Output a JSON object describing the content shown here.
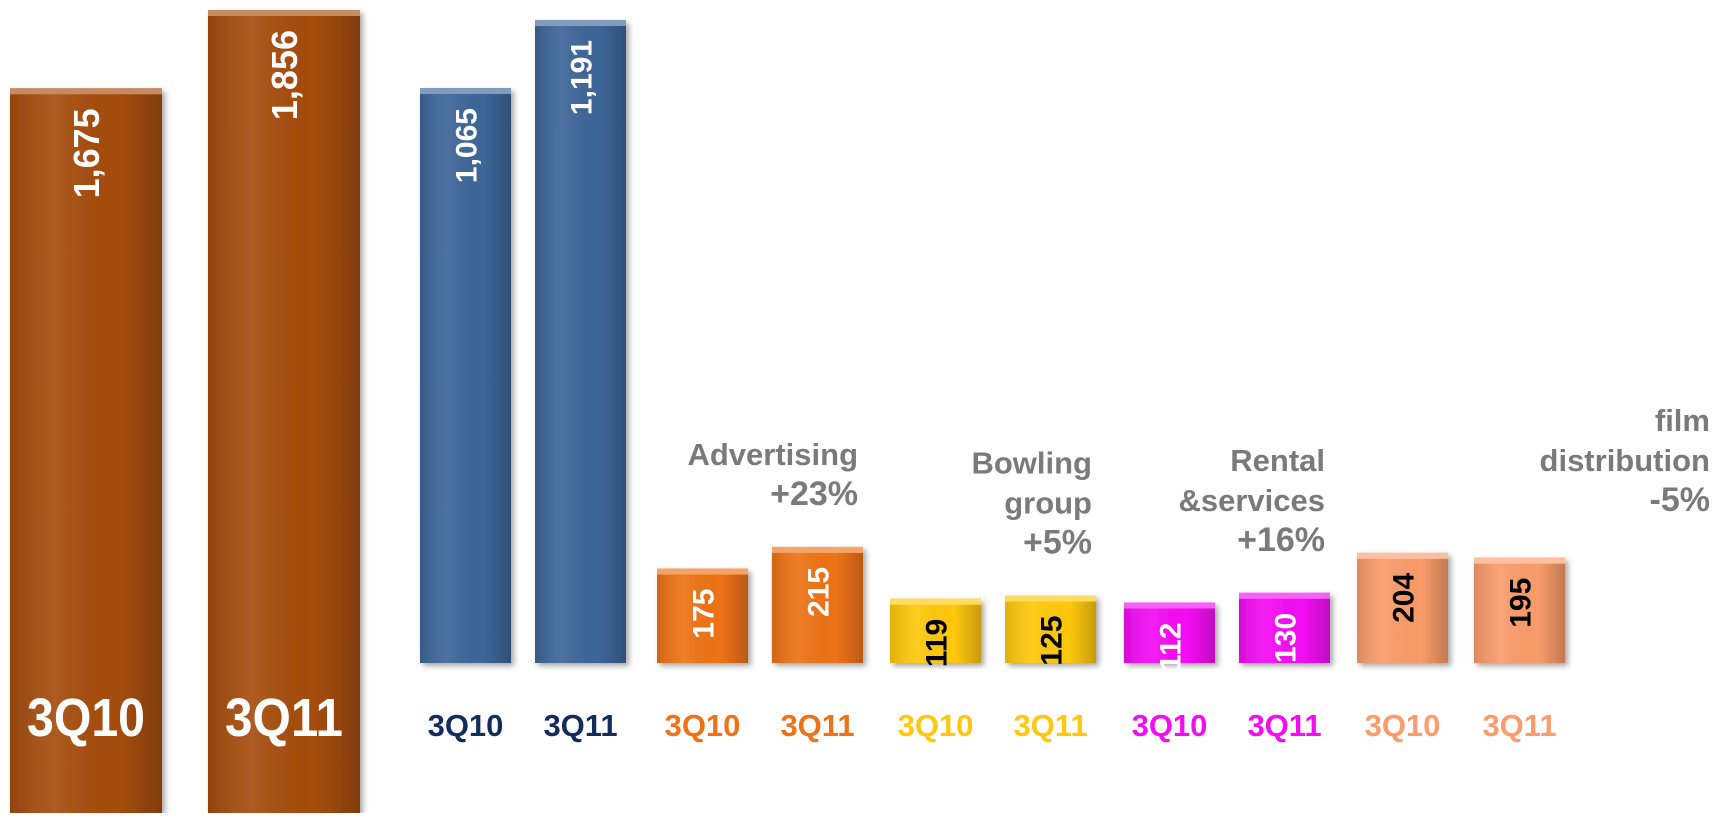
{
  "chart_data": {
    "type": "bar",
    "colors": {
      "total": "#A64D0E",
      "core": "#3E6699",
      "advertising": "#EE7316",
      "bowling": "#FFC80C",
      "rental": "#F40CF4",
      "film": "#FA9C6B",
      "group_label": "#7A7A7A",
      "label_white": "#FFFFFF",
      "label_black": "#000000",
      "core_tick": "#142C5C"
    },
    "total_series": {
      "categories": [
        "3Q10",
        "3Q11"
      ],
      "values": [
        1675,
        1856
      ],
      "labels": [
        "1,675",
        "1,856"
      ]
    },
    "groups": [
      {
        "key": "core",
        "title": "",
        "change": "",
        "categories": [
          "3Q10",
          "3Q11"
        ],
        "values": [
          1065,
          1191
        ],
        "labels": [
          "1,065",
          "1,191"
        ]
      },
      {
        "key": "advertising",
        "title": "Advertising",
        "change": "+23%",
        "categories": [
          "3Q10",
          "3Q11"
        ],
        "values": [
          175,
          215
        ],
        "labels": [
          "175",
          "215"
        ]
      },
      {
        "key": "bowling",
        "title": "Bowling group",
        "change": "+5%",
        "categories": [
          "3Q10",
          "3Q11"
        ],
        "values": [
          119,
          125
        ],
        "labels": [
          "119",
          "125"
        ]
      },
      {
        "key": "rental",
        "title": "Rental &services",
        "change": "+16%",
        "categories": [
          "3Q10",
          "3Q11"
        ],
        "values": [
          112,
          130
        ],
        "labels": [
          "112",
          "130"
        ]
      },
      {
        "key": "film",
        "title": "film distribution",
        "change": "-5%",
        "categories": [
          "3Q10",
          "3Q11"
        ],
        "values": [
          204,
          195
        ],
        "labels": [
          "204",
          "195"
        ]
      }
    ]
  }
}
